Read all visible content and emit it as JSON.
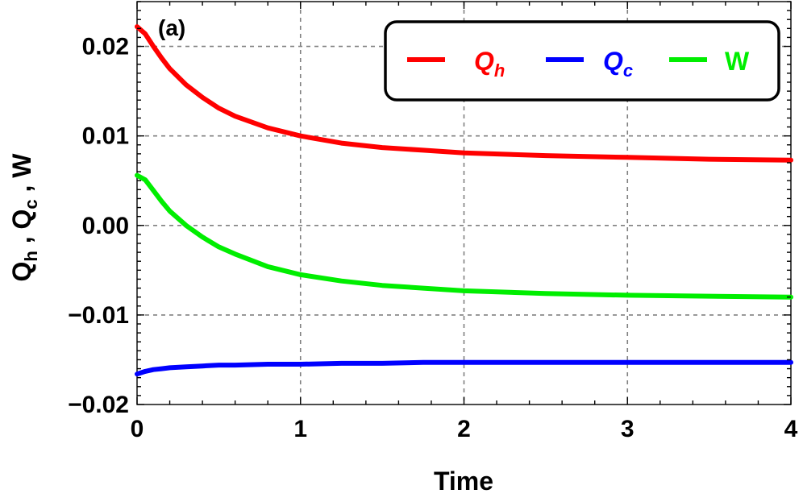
{
  "chart_data": {
    "type": "line",
    "panel_label": "(a)",
    "xlabel": "Time",
    "ylabel": {
      "parts": [
        "Q",
        "h",
        " , ",
        "Q",
        "c",
        " , W"
      ]
    },
    "xlim": [
      0,
      4
    ],
    "ylim": [
      -0.02,
      0.025
    ],
    "x_ticks": [
      0,
      1,
      2,
      3,
      4
    ],
    "x_tick_labels": [
      "0",
      "1",
      "2",
      "3",
      "4"
    ],
    "y_ticks": [
      -0.02,
      -0.01,
      0.0,
      0.01,
      0.02
    ],
    "y_tick_labels": [
      "−0.02",
      "−0.01",
      "0.00",
      "0.01",
      "0.02"
    ],
    "grid": true,
    "legend_position": "top-right",
    "x": [
      0,
      0.05,
      0.1,
      0.15,
      0.2,
      0.3,
      0.4,
      0.5,
      0.6,
      0.8,
      1.0,
      1.25,
      1.5,
      1.75,
      2.0,
      2.5,
      3.0,
      3.5,
      4.0
    ],
    "series": [
      {
        "name": "Q_h",
        "label_main": "Q",
        "label_sub": "h",
        "color": "#ff0000",
        "values": [
          0.0222,
          0.0214,
          0.02,
          0.0187,
          0.0175,
          0.0157,
          0.0143,
          0.0131,
          0.0122,
          0.0109,
          0.01,
          0.0092,
          0.0087,
          0.0084,
          0.0081,
          0.0078,
          0.0076,
          0.0074,
          0.0073
        ]
      },
      {
        "name": "Q_c",
        "label_main": "Q",
        "label_sub": "c",
        "color": "#0000ff",
        "values": [
          -0.0166,
          -0.0163,
          -0.0161,
          -0.016,
          -0.0159,
          -0.0158,
          -0.0157,
          -0.0156,
          -0.0156,
          -0.0155,
          -0.0155,
          -0.0154,
          -0.0154,
          -0.0153,
          -0.0153,
          -0.0153,
          -0.0153,
          -0.0153,
          -0.0153
        ]
      },
      {
        "name": "W",
        "label_main": "W",
        "label_sub": "",
        "color": "#00ee00",
        "values": [
          0.0056,
          0.0051,
          0.0039,
          0.0027,
          0.0016,
          0.0,
          -0.0013,
          -0.0024,
          -0.0032,
          -0.0046,
          -0.0055,
          -0.0062,
          -0.0067,
          -0.007,
          -0.0073,
          -0.0076,
          -0.0078,
          -0.0079,
          -0.008
        ]
      }
    ]
  }
}
